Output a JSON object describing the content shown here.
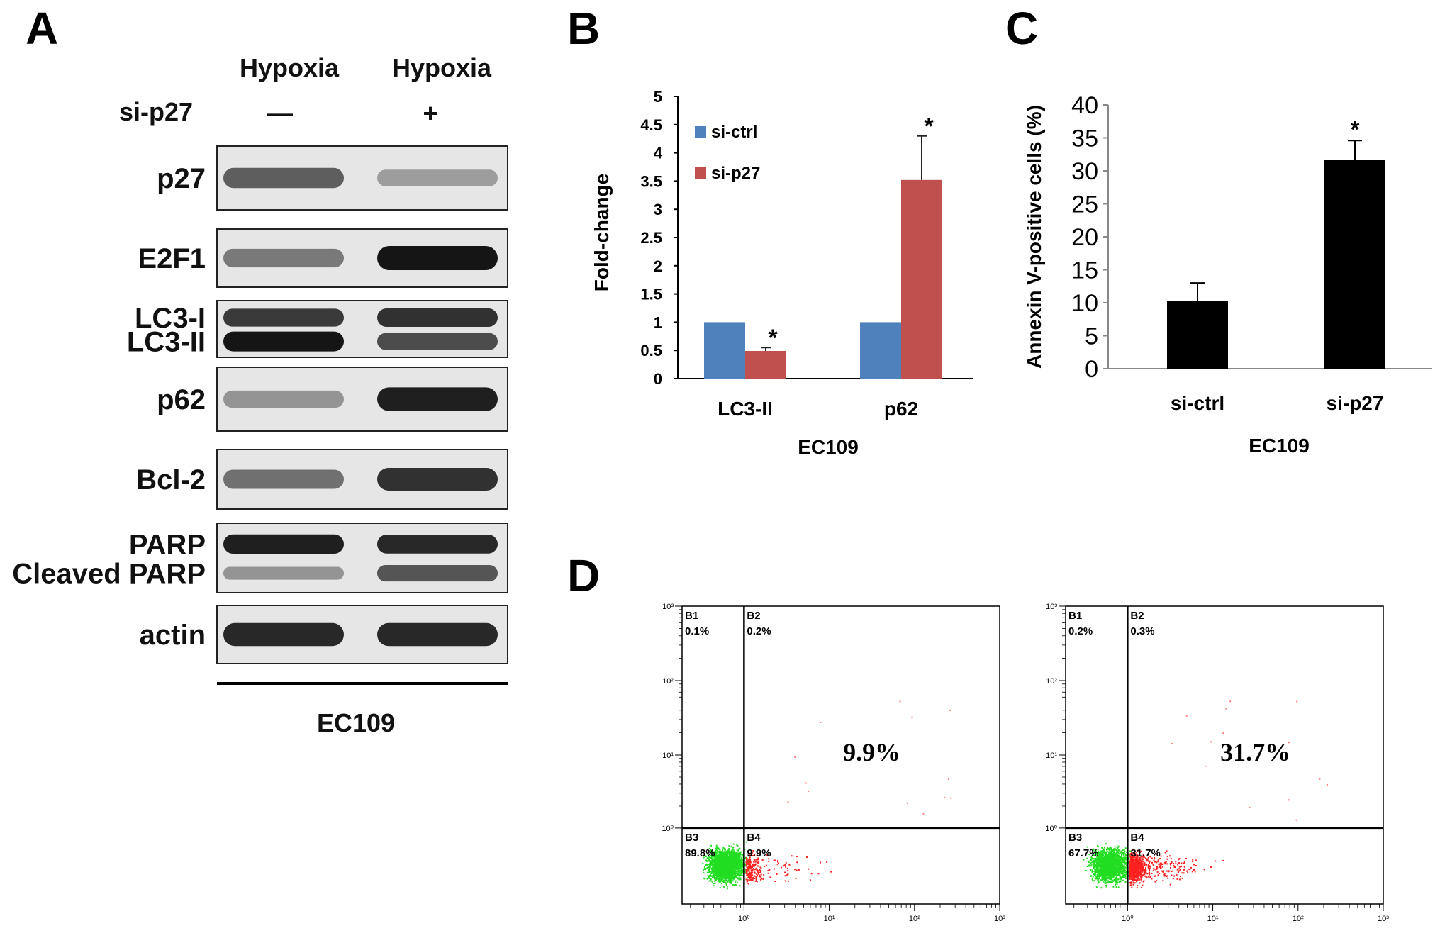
{
  "panel_labels": [
    "A",
    "B",
    "C",
    "D"
  ],
  "panel_a": {
    "header_hypoxia_1": "Hypoxia",
    "header_hypoxia_2": "Hypoxia",
    "sip27_label": "si-p27",
    "sip27_minus": "—",
    "sip27_plus": "+",
    "bands": [
      {
        "labels": [
          "p27"
        ],
        "intensity": [
          [
            0.6,
            0.25
          ]
        ]
      },
      {
        "labels": [
          "E2F1"
        ],
        "intensity": [
          [
            0.45,
            1.0
          ]
        ]
      },
      {
        "labels": [
          "LC3-I",
          "LC3-II"
        ],
        "intensity": [
          [
            0.8,
            0.85
          ],
          [
            1.0,
            0.7
          ]
        ]
      },
      {
        "labels": [
          "p62"
        ],
        "intensity": [
          [
            0.3,
            0.95
          ]
        ]
      },
      {
        "labels": [
          "Bcl-2"
        ],
        "intensity": [
          [
            0.5,
            0.85
          ]
        ]
      },
      {
        "labels": [
          "PARP",
          "Cleaved PARP"
        ],
        "intensity": [
          [
            0.95,
            0.9
          ],
          [
            0.3,
            0.65
          ]
        ]
      },
      {
        "labels": [
          "actin"
        ],
        "intensity": [
          [
            0.9,
            0.9
          ]
        ]
      }
    ],
    "cell_line": "EC109"
  },
  "chart_data": [
    {
      "type": "bar",
      "panel": "B",
      "categories": [
        "LC3-II",
        "p62"
      ],
      "series": [
        {
          "name": "si-ctrl",
          "values": [
            1.0,
            1.0
          ],
          "errors": [
            0,
            0
          ],
          "color": "#4F81BD"
        },
        {
          "name": "si-p27",
          "values": [
            0.49,
            3.52
          ],
          "errors": [
            0.06,
            0.78
          ],
          "color": "#C0504D"
        }
      ],
      "significance": [
        {
          "category": "LC3-II",
          "series": "si-p27",
          "mark": "*"
        },
        {
          "category": "p62",
          "series": "si-p27",
          "mark": "*"
        }
      ],
      "ylabel": "Fold-change",
      "xlabel": "EC109",
      "ylim": [
        0,
        5
      ],
      "yticks": [
        "0",
        "0.5",
        "1",
        "1.5",
        "2",
        "2.5",
        "3",
        "3.5",
        "4",
        "4.5",
        "5"
      ],
      "legend": "top-left",
      "grid": false
    },
    {
      "type": "bar",
      "panel": "C",
      "categories": [
        "si-ctrl",
        "si-p27"
      ],
      "values": [
        10.3,
        31.7
      ],
      "errors": [
        2.7,
        2.9
      ],
      "color": "#000000",
      "significance": [
        {
          "category": "si-p27",
          "mark": "*"
        }
      ],
      "ylabel": "Annexin V-positive cells (%)",
      "xlabel": "EC109",
      "ylim": [
        0,
        40
      ],
      "yticks": [
        "0",
        "5",
        "10",
        "15",
        "20",
        "25",
        "30",
        "35",
        "40"
      ],
      "grid": false
    },
    {
      "type": "scatter",
      "panel": "D",
      "plots": [
        {
          "quadrants": {
            "B1": "0.1%",
            "B2": "0.2%",
            "B3": "89.8%",
            "B4": "9.9%"
          },
          "highlight": "9.9%"
        },
        {
          "quadrants": {
            "B1": "0.2%",
            "B2": "0.3%",
            "B3": "67.7%",
            "B4": "31.7%"
          },
          "highlight": "31.7%"
        }
      ],
      "quadrant_names": [
        "B1",
        "B2",
        "B3",
        "B4"
      ],
      "y_decades": [
        "10³",
        "10²",
        "10¹",
        "10⁰"
      ],
      "x_decades": [
        "10⁰",
        "10¹",
        "10²",
        "10³"
      ],
      "colors": {
        "live": "#22dd22",
        "apoptotic": "#ff2020"
      }
    }
  ]
}
